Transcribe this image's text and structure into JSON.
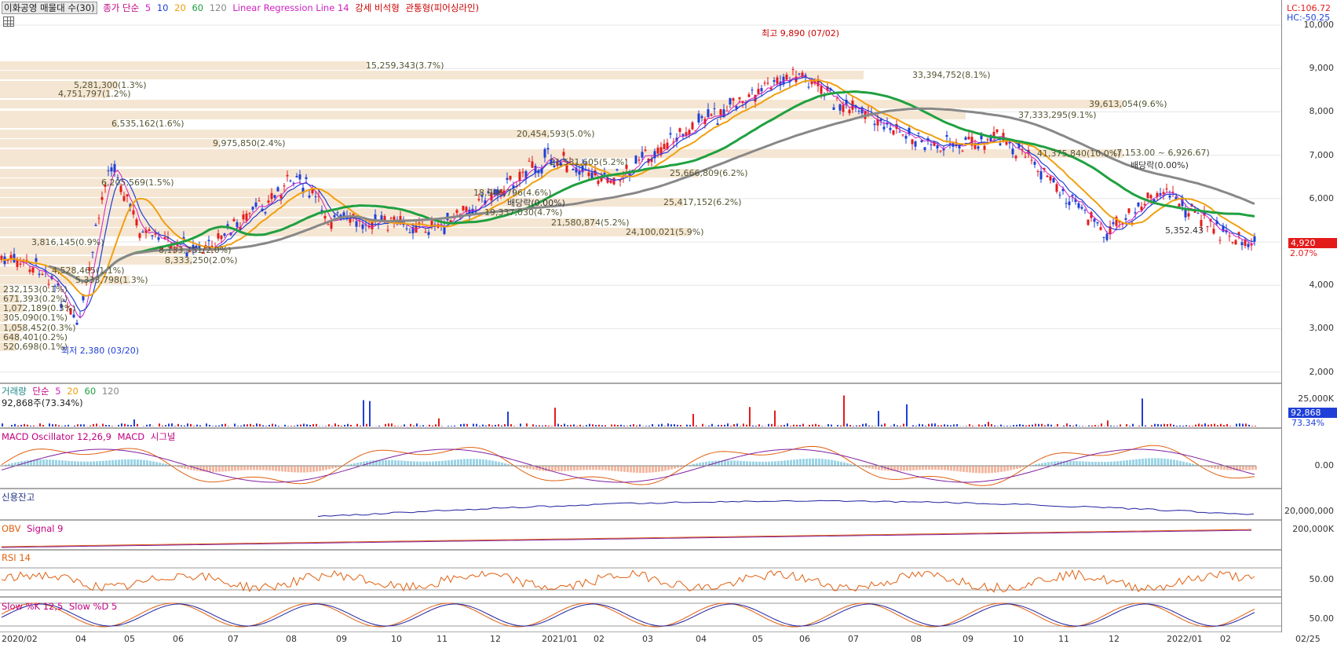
{
  "legend": {
    "stock": "이화공영 매물대 수(30)",
    "ma_label": "종가 단순",
    "ma_periods": [
      "5",
      "10",
      "20",
      "60",
      "120"
    ],
    "lrl": "Linear Regression Line 14",
    "strong": "강세 비석형",
    "pierce": "관통형(피어싱라인)"
  },
  "corner": {
    "lc": "LC:106.72",
    "hc": "HC:-50.25"
  },
  "price_axis": [
    "10,000",
    "9,000",
    "8,000",
    "7,000",
    "6,000",
    "5,000",
    "4,000",
    "3,000",
    "2,000"
  ],
  "price_tag": {
    "value": "4,920",
    "pct": "2.07%"
  },
  "annotations": {
    "high": "최고 9,890 (07/02)",
    "low": "최저 2,380 (03/20)",
    "div1": "배당락(0.00%)",
    "div2": "배당락(0.00%)",
    "range": "(7,153.00 ~ 6,926.67)",
    "v1": "5,352.43"
  },
  "volume_profile": [
    "15,259,343(3.7%)",
    "5,281,300(1.3%)",
    "4,751,797(1.2%)",
    "33,394,752(8.1%)",
    "39,613,054(9.6%)",
    "37,333,295(9.1%)",
    "6,535,162(1.6%)",
    "20,454,593(5.0%)",
    "9,975,850(2.4%)",
    "41,375,840(10.0%)",
    "21,531,605(5.2%)",
    "25,666,809(6.2%)",
    "6,205,569(1.5%)",
    "18,946,796(4.6%)",
    "25,417,152(6.2%)",
    "19,337,030(4.7%)",
    "21,580,874(5.2%)",
    "24,100,021(5.9%)",
    "3,816,145(0.9%)",
    "8,133,751(2.0%)",
    "8,333,250(2.0%)",
    "4,528,465(1.1%)",
    "5,333,798(1.3%)",
    "232,153(0.1%)",
    "671,393(0.2%)",
    "1,072,189(0.3%)",
    "305,090(0.1%)",
    "1,058,452(0.3%)",
    "648,401(0.2%)",
    "520,698(0.1%)"
  ],
  "volume_panel": {
    "title": "거래량",
    "ma_label": "단순",
    "periods": [
      "5",
      "20",
      "60",
      "120"
    ],
    "current": "92,868주(73.34%)",
    "axis": "25,000K",
    "tag": "92,868",
    "tag_pct": "73.34%"
  },
  "macd_panel": {
    "title": "MACD Oscillator 12,26,9",
    "macd": "MACD",
    "signal": "시그널",
    "axis": "0.00"
  },
  "credit_panel": {
    "title": "신용잔고",
    "axis": "20,000,000"
  },
  "obv_panel": {
    "title": "OBV",
    "signal": "Signal 9",
    "axis": "200,000K"
  },
  "rsi_panel": {
    "title": "RSI 14",
    "axis": "50.00"
  },
  "stoch_panel": {
    "title": "Slow %K 12,5",
    "d": "Slow %D 5",
    "axis": "50.00"
  },
  "x_axis": [
    "2020/02",
    "04",
    "05",
    "06",
    "07",
    "08",
    "09",
    "10",
    "11",
    "12",
    "2021/01",
    "02",
    "03",
    "04",
    "05",
    "06",
    "07",
    "08",
    "09",
    "10",
    "11",
    "12",
    "2022/01",
    "02",
    "02/25"
  ],
  "colors": {
    "up": "#e41b1b",
    "down": "#1f3fd6",
    "ma5": "#d020c0",
    "ma20": "#f0a010",
    "ma60": "#20a040",
    "ma120": "#888888",
    "vp": "#f5e6d3"
  }
}
